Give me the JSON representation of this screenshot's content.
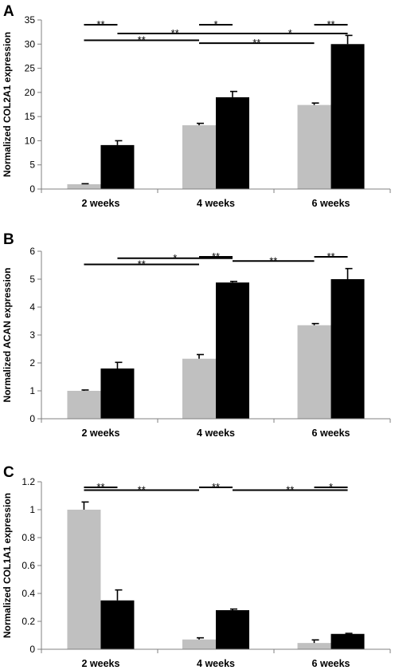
{
  "colors": {
    "series_light": "#c0c0c0",
    "series_dark": "#000000"
  },
  "chart_data": [
    {
      "panel": "A",
      "type": "bar",
      "categories": [
        "2 weeks",
        "4 weeks",
        "6 weeks"
      ],
      "ylabel": "Normalized COL2A1 expression",
      "ylim": [
        0,
        35
      ],
      "yticks": [
        "0",
        "5",
        "10",
        "15",
        "20",
        "25",
        "30",
        "35"
      ],
      "grid": false,
      "series": [
        {
          "values": [
            1.0,
            13.2,
            17.4
          ],
          "errors": [
            0.1,
            0.4,
            0.4
          ]
        },
        {
          "values": [
            9.1,
            19.0,
            30.0
          ],
          "errors": [
            0.9,
            1.2,
            1.8
          ]
        }
      ],
      "significance": [
        {
          "from": [
            0,
            0
          ],
          "to": [
            0,
            1
          ],
          "label": "**",
          "level": 34.0
        },
        {
          "from": [
            1,
            0
          ],
          "to": [
            1,
            1
          ],
          "label": "*",
          "level": 34.0
        },
        {
          "from": [
            2,
            0
          ],
          "to": [
            2,
            1
          ],
          "label": "**",
          "level": 34.0
        },
        {
          "from": [
            0,
            1
          ],
          "to": [
            1,
            1
          ],
          "label": "**",
          "level": 32.2
        },
        {
          "from": [
            1,
            1
          ],
          "to": [
            2,
            1
          ],
          "label": "*",
          "level": 32.2
        },
        {
          "from": [
            0,
            0
          ],
          "to": [
            1,
            0
          ],
          "label": "**",
          "level": 30.8
        },
        {
          "from": [
            1,
            0
          ],
          "to": [
            2,
            0
          ],
          "label": "**",
          "level": 30.2
        }
      ]
    },
    {
      "panel": "B",
      "type": "bar",
      "categories": [
        "2 weeks",
        "4 weeks",
        "6 weeks"
      ],
      "ylabel": "Normalized ACAN expression",
      "ylim": [
        0,
        6
      ],
      "yticks": [
        "0",
        "1",
        "2",
        "3",
        "4",
        "5",
        "6"
      ],
      "grid": false,
      "series": [
        {
          "values": [
            1.0,
            2.15,
            3.35
          ],
          "errors": [
            0.03,
            0.15,
            0.06
          ]
        },
        {
          "values": [
            1.8,
            4.88,
            5.0
          ],
          "errors": [
            0.22,
            0.04,
            0.38
          ]
        }
      ],
      "significance": [
        {
          "from": [
            1,
            0
          ],
          "to": [
            1,
            1
          ],
          "label": "**",
          "level": 5.8
        },
        {
          "from": [
            2,
            0
          ],
          "to": [
            2,
            1
          ],
          "label": "**",
          "level": 5.8
        },
        {
          "from": [
            0,
            1
          ],
          "to": [
            1,
            1
          ],
          "label": "*",
          "level": 5.75
        },
        {
          "from": [
            1,
            1
          ],
          "to": [
            2,
            0
          ],
          "label": "**",
          "level": 5.65
        },
        {
          "from": [
            0,
            0
          ],
          "to": [
            1,
            0
          ],
          "label": "**",
          "level": 5.53
        }
      ]
    },
    {
      "panel": "C",
      "type": "bar",
      "categories": [
        "2 weeks",
        "4 weeks",
        "6 weeks"
      ],
      "ylabel": "Normalized COL1A1 expression",
      "ylim": [
        0,
        1.2
      ],
      "yticks": [
        "0",
        "0.2",
        "0.4",
        "0.6",
        "0.8",
        "1",
        "1.2"
      ],
      "grid": false,
      "series": [
        {
          "values": [
            1.0,
            0.07,
            0.045
          ],
          "errors": [
            0.055,
            0.012,
            0.022
          ]
        },
        {
          "values": [
            0.35,
            0.28,
            0.11
          ],
          "errors": [
            0.075,
            0.008,
            0.004
          ]
        }
      ],
      "significance": [
        {
          "from": [
            0,
            0
          ],
          "to": [
            0,
            1
          ],
          "label": "**",
          "level": 1.16
        },
        {
          "from": [
            1,
            0
          ],
          "to": [
            1,
            1
          ],
          "label": "**",
          "level": 1.16
        },
        {
          "from": [
            2,
            0
          ],
          "to": [
            2,
            1
          ],
          "label": "*",
          "level": 1.16
        },
        {
          "from": [
            0,
            0
          ],
          "to": [
            1,
            0
          ],
          "label": "**",
          "level": 1.14
        },
        {
          "from": [
            1,
            1
          ],
          "to": [
            2,
            1
          ],
          "label": "**",
          "level": 1.14
        }
      ]
    }
  ]
}
